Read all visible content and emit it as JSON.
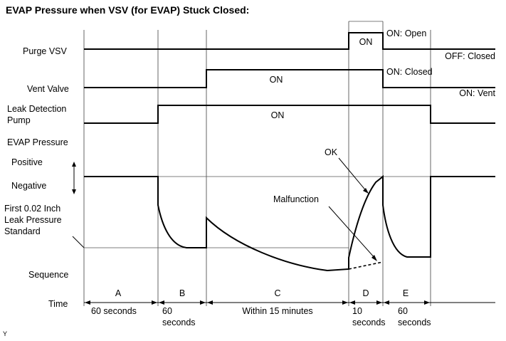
{
  "title": "EVAP Pressure when VSV (for EVAP) Stuck Closed:",
  "rows": {
    "purge_vsv": "Purge VSV",
    "vent_valve": "Vent Valve",
    "leak_pump_1": "Leak Detection",
    "leak_pump_2": "Pump",
    "evap_pressure": "EVAP Pressure",
    "positive": "Positive",
    "negative": "Negative",
    "standard_1": "First 0.02 Inch",
    "standard_2": "Leak Pressure",
    "standard_3": "Standard",
    "sequence": "Sequence",
    "time": "Time"
  },
  "states": {
    "purge_on": "ON: Open",
    "purge_off": "OFF: Closed",
    "vent_on": "ON: Closed",
    "vent_off": "ON: Vent"
  },
  "pulse_labels": {
    "purge": "ON",
    "vent": "ON",
    "pump": "ON"
  },
  "annotations": {
    "ok": "OK",
    "malfunction": "Malfunction"
  },
  "sequence": [
    {
      "letter": "A",
      "time_1": "60 seconds",
      "time_2": ""
    },
    {
      "letter": "B",
      "time_1": "60",
      "time_2": "seconds"
    },
    {
      "letter": "C",
      "time_1": "Within 15 minutes",
      "time_2": ""
    },
    {
      "letter": "D",
      "time_1": "10",
      "time_2": "seconds"
    },
    {
      "letter": "E",
      "time_1": "60",
      "time_2": "seconds"
    }
  ],
  "corner_mark": "Y"
}
